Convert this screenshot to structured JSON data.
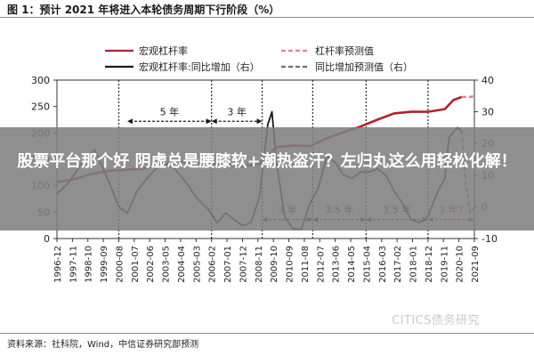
{
  "figure": {
    "title": "图 1：预计 2021 年将进入本轮债务周期下行阶段（%）",
    "source": "资料来源：社科院，Wind，中信证券研究部预测",
    "watermark": "CITICS债务研究"
  },
  "overlay": {
    "text": "股票平台那个好 阴虚总是腰膝软+潮热盗汗？左归丸这么用轻松化解！"
  },
  "chart_data": {
    "type": "line",
    "categories": [
      "1996-12",
      "1997-11",
      "1998-10",
      "1999-09",
      "2000-08",
      "2001-07",
      "2002-06",
      "2003-05",
      "2004-04",
      "2005-03",
      "2006-02",
      "2007-01",
      "2007-12",
      "2008-11",
      "2009-10",
      "2010-09",
      "2011-08",
      "2012-07",
      "2013-06",
      "2014-05",
      "2015-04",
      "2016-03",
      "2017-02",
      "2018-01",
      "2018-12",
      "2019-11",
      "2020-10",
      "2021-09"
    ],
    "x_start": "1996-12",
    "x_end": "2021-09",
    "y_left": {
      "ticks": [
        0,
        50,
        100,
        150,
        200,
        250,
        300
      ],
      "range": [
        0,
        300
      ]
    },
    "y_right": {
      "ticks": [
        -10,
        0,
        10,
        20,
        30,
        40
      ],
      "range": [
        -10,
        40
      ]
    },
    "series": [
      {
        "name": "宏观杠杆率",
        "axis": "left",
        "color": "#b0222d",
        "style": "solid",
        "points": [
          [
            "1996-12",
            107
          ],
          [
            "1997-12",
            112
          ],
          [
            "1998-12",
            122
          ],
          [
            "1999-12",
            128
          ],
          [
            "2000-12",
            130
          ],
          [
            "2001-12",
            132
          ],
          [
            "2002-12",
            138
          ],
          [
            "2003-12",
            146
          ],
          [
            "2004-12",
            143
          ],
          [
            "2005-12",
            141
          ],
          [
            "2006-12",
            140
          ],
          [
            "2007-12",
            136
          ],
          [
            "2008-12",
            141
          ],
          [
            "2009-12",
            173
          ],
          [
            "2010-12",
            176
          ],
          [
            "2011-12",
            175
          ],
          [
            "2012-12",
            190
          ],
          [
            "2013-12",
            201
          ],
          [
            "2014-12",
            212
          ],
          [
            "2015-12",
            225
          ],
          [
            "2016-12",
            237
          ],
          [
            "2017-12",
            240
          ],
          [
            "2018-12",
            240
          ],
          [
            "2019-12",
            245
          ],
          [
            "2020-06",
            262
          ],
          [
            "2020-12",
            268
          ]
        ]
      },
      {
        "name": "杠杆率预测值",
        "axis": "left",
        "color": "#d9888e",
        "style": "dashed",
        "points": [
          [
            "2020-12",
            268
          ],
          [
            "2021-03",
            268
          ],
          [
            "2021-06",
            268
          ],
          [
            "2021-09",
            270
          ]
        ]
      },
      {
        "name": "宏观杠杆率:同比增加（右）",
        "axis": "right",
        "color": "#1a1a1a",
        "style": "solid",
        "points": [
          [
            "1996-12",
            4
          ],
          [
            "1997-09",
            8
          ],
          [
            "1998-06",
            14
          ],
          [
            "1999-03",
            18
          ],
          [
            "1999-12",
            9
          ],
          [
            "2000-08",
            0
          ],
          [
            "2001-02",
            -2
          ],
          [
            "2001-09",
            5
          ],
          [
            "2002-06",
            10
          ],
          [
            "2003-03",
            14
          ],
          [
            "2003-12",
            12
          ],
          [
            "2004-09",
            7
          ],
          [
            "2005-03",
            3
          ],
          [
            "2005-12",
            -1
          ],
          [
            "2006-06",
            -5
          ],
          [
            "2006-12",
            -2
          ],
          [
            "2007-06",
            -4
          ],
          [
            "2007-12",
            -6
          ],
          [
            "2008-06",
            -5
          ],
          [
            "2008-12",
            3
          ],
          [
            "2009-06",
            26
          ],
          [
            "2009-09",
            30
          ],
          [
            "2009-12",
            15
          ],
          [
            "2010-06",
            -3
          ],
          [
            "2010-12",
            -7
          ],
          [
            "2011-06",
            -7
          ],
          [
            "2011-12",
            1
          ],
          [
            "2012-06",
            6
          ],
          [
            "2012-12",
            16
          ],
          [
            "2013-06",
            14
          ],
          [
            "2013-12",
            10
          ],
          [
            "2014-06",
            9
          ],
          [
            "2014-12",
            11
          ],
          [
            "2015-06",
            11
          ],
          [
            "2015-12",
            12
          ],
          [
            "2016-06",
            10
          ],
          [
            "2016-12",
            5
          ],
          [
            "2017-06",
            1
          ],
          [
            "2017-12",
            -4
          ],
          [
            "2018-06",
            -5
          ],
          [
            "2018-12",
            -3
          ],
          [
            "2019-06",
            4
          ],
          [
            "2019-12",
            9
          ],
          [
            "2020-03",
            22
          ],
          [
            "2020-09",
            25
          ],
          [
            "2020-12",
            24
          ]
        ]
      },
      {
        "name": "同比增加预测值（右）",
        "axis": "right",
        "color": "#6e6e6e",
        "style": "dashed",
        "points": [
          [
            "2020-12",
            24
          ],
          [
            "2021-03",
            7
          ],
          [
            "2021-06",
            -2
          ],
          [
            "2021-09",
            0
          ]
        ]
      }
    ],
    "reference_lines": [
      "2000-08",
      "2006-02",
      "2009-02",
      "2012-02",
      "2015-04",
      "2018-12"
    ],
    "annotations": [
      {
        "label": "5 年",
        "from": "2001-02",
        "to": "2006-02",
        "y_right": 27
      },
      {
        "label": "3 年",
        "from": "2006-02",
        "to": "2009-02",
        "y_right": 27
      },
      {
        "label": "3 年",
        "from": "2009-02",
        "to": "2012-02",
        "y_right": -4
      },
      {
        "label": "3.5 年",
        "from": "2012-02",
        "to": "2015-04",
        "y_right": -4
      },
      {
        "label": "3.5 年",
        "from": "2015-04",
        "to": "2018-12",
        "y_right": -4
      },
      {
        "label": "3 年?",
        "from": "2018-12",
        "to": "2021-09",
        "y_right": -4,
        "color": "#b0222d"
      }
    ],
    "legend_position": "top",
    "grid": false
  }
}
